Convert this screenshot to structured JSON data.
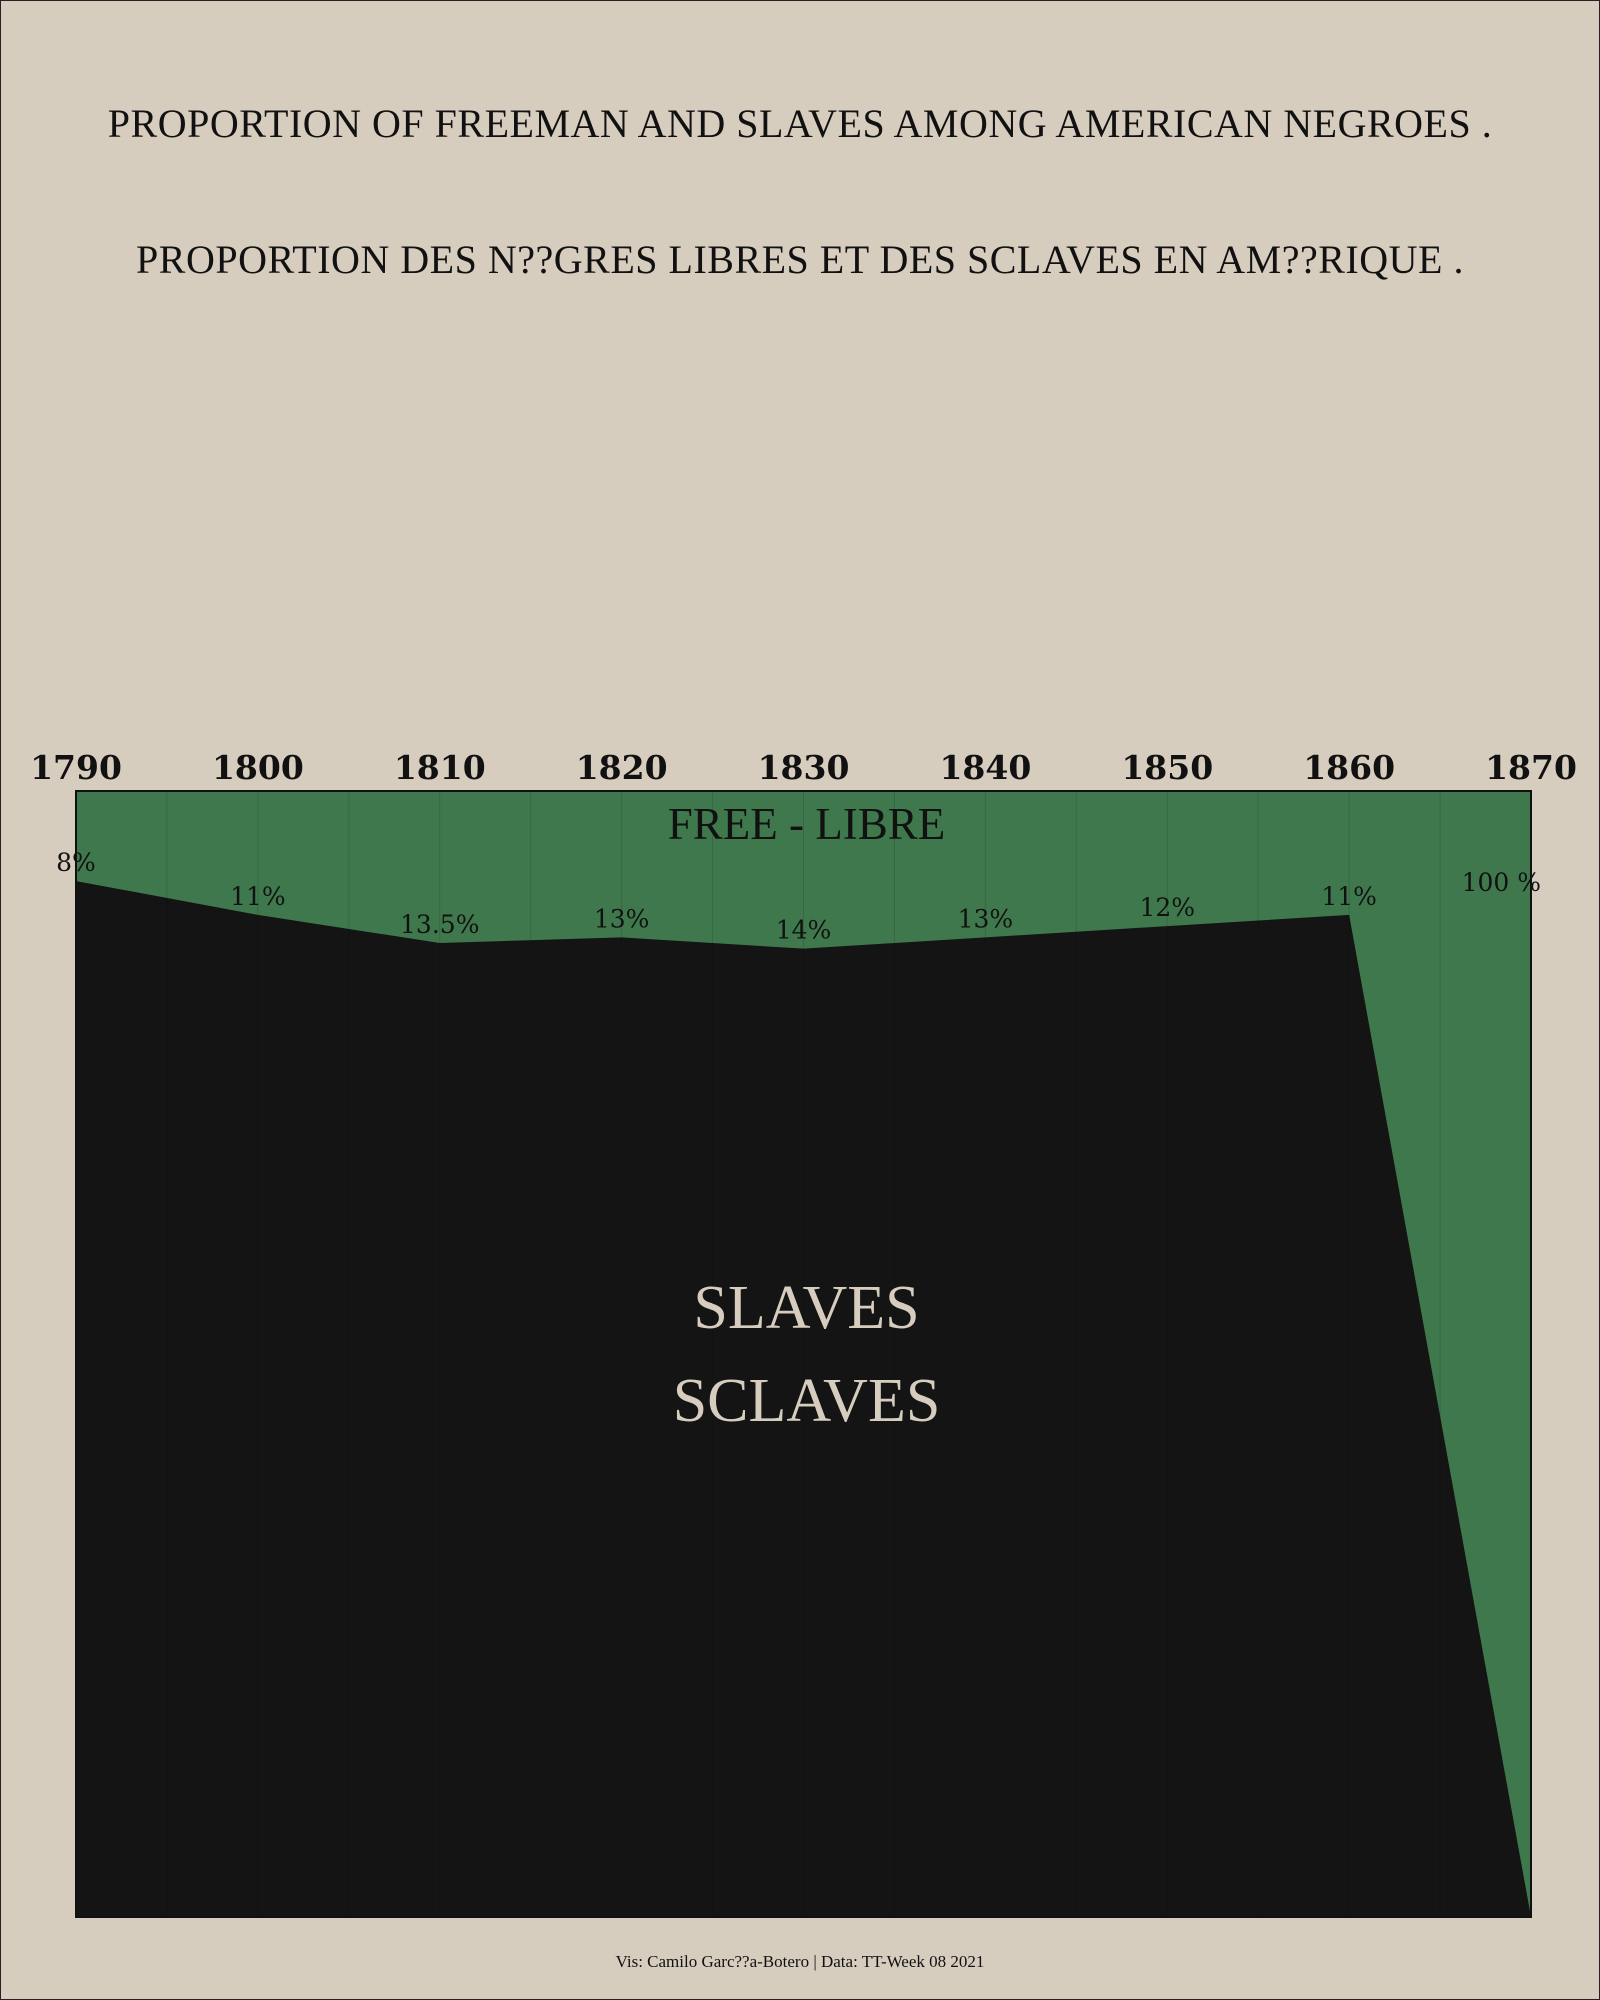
{
  "title": "PROPORTION OF FREEMAN AND SLAVES AMONG AMERICAN NEGROES .",
  "subtitle": "PROPORTION DES N??GRES LIBRES ET DES SCLAVES EN AM??RIQUE .",
  "caption": "Vis: Camilo Garc??a-Botero | Data: TT-Week 08 2021",
  "chart_data": {
    "type": "area",
    "x": [
      1790,
      1800,
      1810,
      1820,
      1830,
      1840,
      1850,
      1860,
      1870
    ],
    "tick_labels": [
      "1790",
      "1800",
      "1810",
      "1820",
      "1830",
      "1840",
      "1850",
      "1860",
      "1870"
    ],
    "free_percent": [
      8,
      11,
      13.5,
      13,
      14,
      13,
      12,
      11,
      100
    ],
    "point_labels": [
      "8%",
      "11%",
      "13.5%",
      "13%",
      "14%",
      "13%",
      "12%",
      "11%",
      "100 %"
    ],
    "series": [
      {
        "name": "FREE - LIBRE",
        "values": [
          8,
          11,
          13.5,
          13,
          14,
          13,
          12,
          11,
          100
        ]
      },
      {
        "name": "SLAVES SCLAVES",
        "values": [
          92,
          89,
          86.5,
          87,
          86,
          87,
          88,
          89,
          0
        ]
      }
    ],
    "series_labels": {
      "free": "FREE - LIBRE",
      "slaves_line1": "SLAVES",
      "slaves_line2": "SCLAVES"
    },
    "xlim": [
      1790,
      1870
    ],
    "ylim": [
      0,
      100
    ],
    "x_axis_position": "top",
    "grid": "vertical",
    "colors": {
      "background": "#d7cdbf",
      "free": "#3f784c",
      "slaves": "#141414",
      "slaves_label": "#d7cdbf",
      "text": "#111111"
    }
  }
}
